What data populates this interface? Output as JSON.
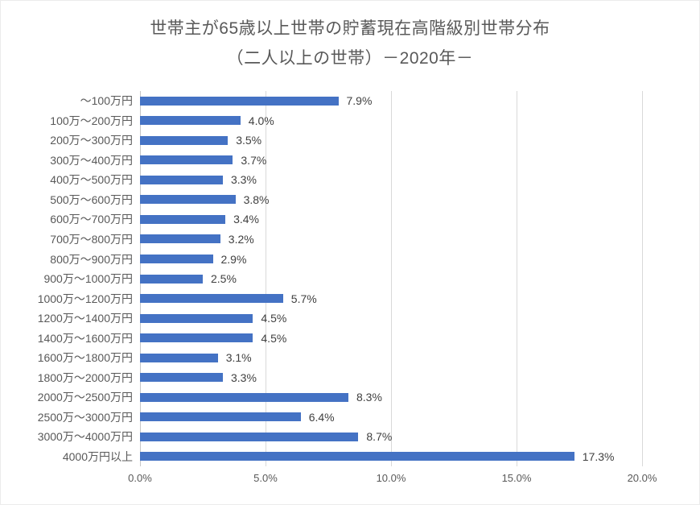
{
  "chart_data": {
    "type": "bar",
    "orientation": "horizontal",
    "title_line1": "世帯主が65歳以上世帯の貯蓄現在高階級別世帯分布",
    "title_line2": "（二人以上の世帯）－2020年－",
    "categories": [
      "～100万円",
      "100万～200万円",
      "200万～300万円",
      "300万～400万円",
      "400万～500万円",
      "500万～600万円",
      "600万～700万円",
      "700万～800万円",
      "800万～900万円",
      "900万～1000万円",
      "1000万～1200万円",
      "1200万～1400万円",
      "1400万～1600万円",
      "1600万～1800万円",
      "1800万～2000万円",
      "2000万～2500万円",
      "2500万～3000万円",
      "3000万～4000万円",
      "4000万円以上"
    ],
    "values": [
      7.9,
      4.0,
      3.5,
      3.7,
      3.3,
      3.8,
      3.4,
      3.2,
      2.9,
      2.5,
      5.7,
      4.5,
      4.5,
      3.1,
      3.3,
      8.3,
      6.4,
      8.7,
      17.3
    ],
    "value_labels": [
      "7.9%",
      "4.0%",
      "3.5%",
      "3.7%",
      "3.3%",
      "3.8%",
      "3.4%",
      "3.2%",
      "2.9%",
      "2.5%",
      "5.7%",
      "4.5%",
      "4.5%",
      "3.1%",
      "3.3%",
      "8.3%",
      "6.4%",
      "8.7%",
      "17.3%"
    ],
    "x_ticks": [
      "0.0%",
      "5.0%",
      "10.0%",
      "15.0%",
      "20.0%"
    ],
    "x_tick_values": [
      0,
      5,
      10,
      15,
      20
    ],
    "xlim": [
      0,
      20
    ],
    "grid": true,
    "legend_position": "none",
    "bar_color": "#4472c4",
    "grid_color": "#d9d9d9",
    "axis_line_color": "#c6c6c6",
    "title_color": "#595959",
    "category_label_color": "#595959",
    "value_label_color": "#404040",
    "tick_label_color": "#595959"
  }
}
